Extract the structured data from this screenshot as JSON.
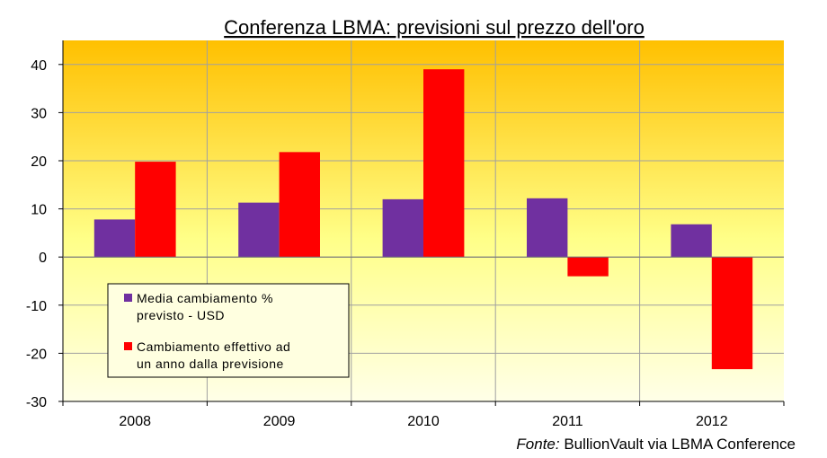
{
  "chart_data": {
    "type": "bar",
    "title": "Conferenza LBMA: previsioni sul prezzo dell'oro",
    "categories": [
      "2008",
      "2009",
      "2010",
      "2011",
      "2012"
    ],
    "series": [
      {
        "name": "Media cambiamento % previsto - USD",
        "values": [
          7.8,
          11.3,
          12.0,
          12.2,
          6.8
        ],
        "color": "#7030A0"
      },
      {
        "name": "Cambiamento effettivo ad un anno dalla previsione",
        "values": [
          19.8,
          21.8,
          39.0,
          -4.0,
          -23.3
        ],
        "color": "#FF0000"
      }
    ],
    "ylim": [
      -30,
      45
    ],
    "yticks": [
      -30,
      -20,
      -10,
      0,
      10,
      20,
      30,
      40
    ],
    "xlabel": "",
    "ylabel": "",
    "grid": true,
    "legend": {
      "placement": "lower-left inside plot",
      "entries": [
        {
          "line1": "Media cambiamento %",
          "line2": "previsto - USD"
        },
        {
          "line1": "Cambiamento effettivo ad",
          "line2": "un anno dalla previsione"
        }
      ]
    },
    "background": {
      "top": "#FFC000",
      "bottom": "#FFFFE8"
    }
  },
  "source": {
    "prefix": "Fonte:",
    "text": " BullionVault via LBMA Conference"
  }
}
